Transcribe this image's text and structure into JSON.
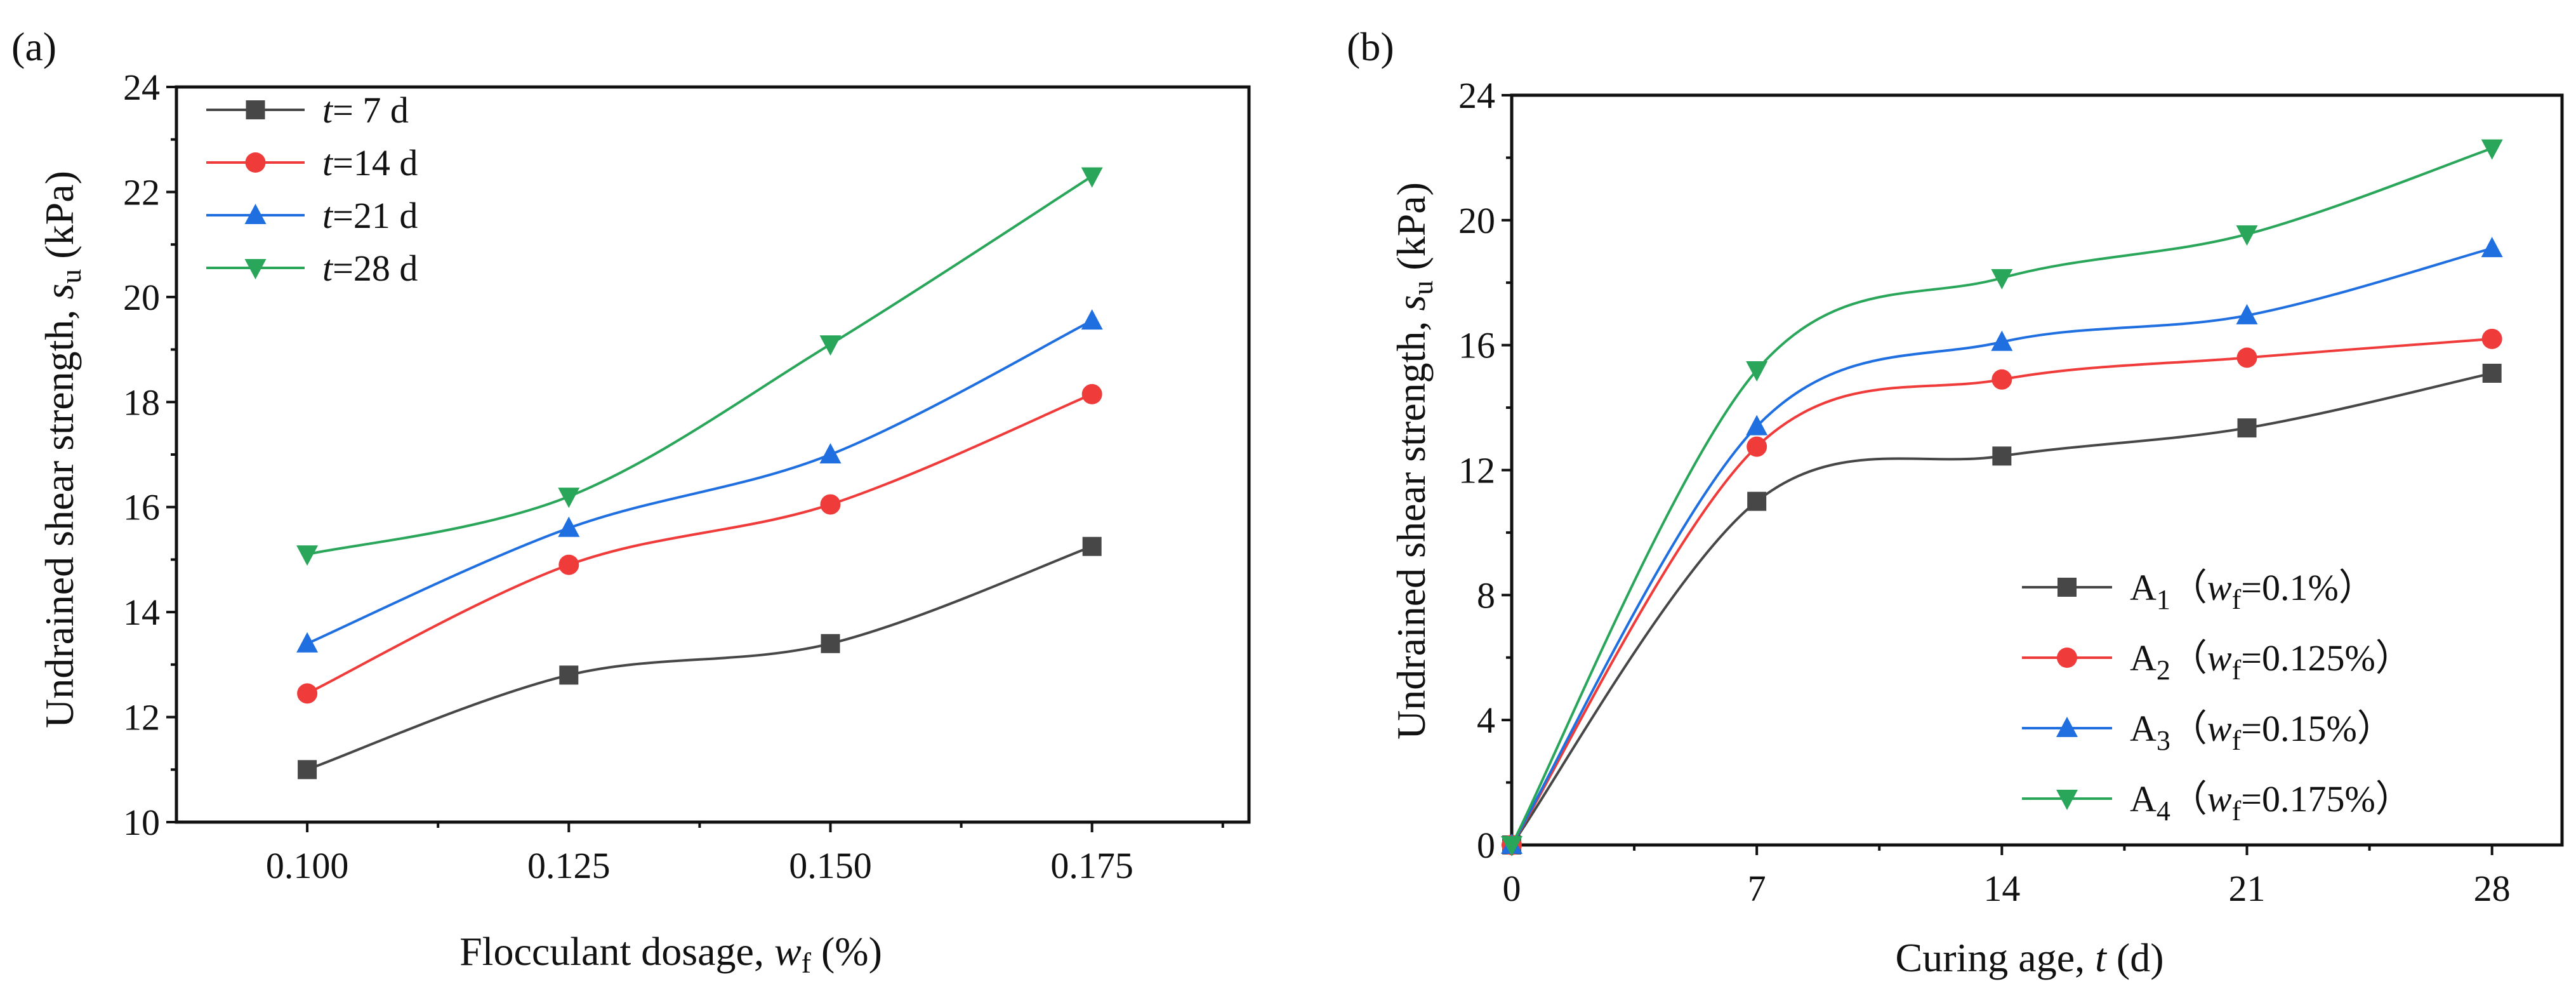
{
  "chart_data": [
    {
      "type": "line",
      "panel_label": "(a)",
      "x": [
        0.1,
        0.125,
        0.15,
        0.175
      ],
      "x_tick_labels": [
        "0.100",
        "0.125",
        "0.150",
        "0.175"
      ],
      "xlim": [
        0.0875,
        0.19
      ],
      "ylim": [
        10,
        24
      ],
      "y_ticks": [
        10,
        12,
        14,
        16,
        18,
        20,
        22,
        24
      ],
      "xlabel": {
        "pre": "Flocculant dosage, ",
        "var": "w",
        "sub": "f",
        "post": " (%)"
      },
      "ylabel": {
        "pre": "Undrained shear strength, ",
        "var": "s",
        "sub": "u",
        "post": " (kPa)"
      },
      "legend_position": "top-left",
      "series": [
        {
          "name": "t= 7 d",
          "var": "t",
          "rest": "=  7 d",
          "color": "#474747",
          "marker": "square",
          "values": [
            11.0,
            12.8,
            13.4,
            15.25
          ]
        },
        {
          "name": "t=14 d",
          "var": "t",
          "rest": "=14 d",
          "color": "#f03b3b",
          "marker": "circle",
          "values": [
            12.45,
            14.9,
            16.05,
            18.15
          ]
        },
        {
          "name": "t=21 d",
          "var": "t",
          "rest": "=21 d",
          "color": "#1f6fe0",
          "marker": "triangle-up",
          "values": [
            13.4,
            15.6,
            17.0,
            19.55
          ]
        },
        {
          "name": "t=28 d",
          "var": "t",
          "rest": "=28 d",
          "color": "#2aa65a",
          "marker": "triangle-down",
          "values": [
            15.1,
            16.2,
            19.1,
            22.3
          ]
        }
      ]
    },
    {
      "type": "line",
      "panel_label": "(b)",
      "x": [
        0,
        7,
        14,
        21,
        28
      ],
      "x_tick_labels": [
        "0",
        "7",
        "14",
        "21",
        "28"
      ],
      "xlim": [
        0,
        30
      ],
      "ylim": [
        0,
        24
      ],
      "y_ticks": [
        0,
        4,
        8,
        12,
        16,
        20,
        24
      ],
      "xlabel": {
        "pre": "Curing age, ",
        "var": "t",
        "sub": "",
        "post": " (d)"
      },
      "ylabel": {
        "pre": "Undrained shear strength, ",
        "var": "s",
        "sub": "u",
        "post": " (kPa)"
      },
      "legend_position": "bottom-right",
      "series": [
        {
          "name": "A1（wf=0.1%）",
          "a": "A",
          "n": "1",
          "open": "（",
          "var": "w",
          "sub": "f",
          "rest": "=0.1%）",
          "color": "#474747",
          "marker": "square",
          "values": [
            0,
            11.0,
            12.45,
            13.35,
            15.1
          ]
        },
        {
          "name": "A2（wf=0.125%）",
          "a": "A",
          "n": "2",
          "open": "（",
          "var": "w",
          "sub": "f",
          "rest": "=0.125%）",
          "color": "#f03b3b",
          "marker": "circle",
          "values": [
            0,
            12.75,
            14.9,
            15.6,
            16.2
          ]
        },
        {
          "name": "A3（wf=0.15%）",
          "a": "A",
          "n": "3",
          "open": "（",
          "var": "w",
          "sub": "f",
          "rest": "=0.15%）",
          "color": "#1f6fe0",
          "marker": "triangle-up",
          "values": [
            0,
            13.4,
            16.1,
            16.95,
            19.1
          ]
        },
        {
          "name": "A4（wf=0.175%）",
          "a": "A",
          "n": "4",
          "open": "（",
          "var": "w",
          "sub": "f",
          "rest": "=0.175%）",
          "color": "#2aa65a",
          "marker": "triangle-down",
          "values": [
            0,
            15.2,
            18.15,
            19.55,
            22.3
          ]
        }
      ]
    }
  ]
}
